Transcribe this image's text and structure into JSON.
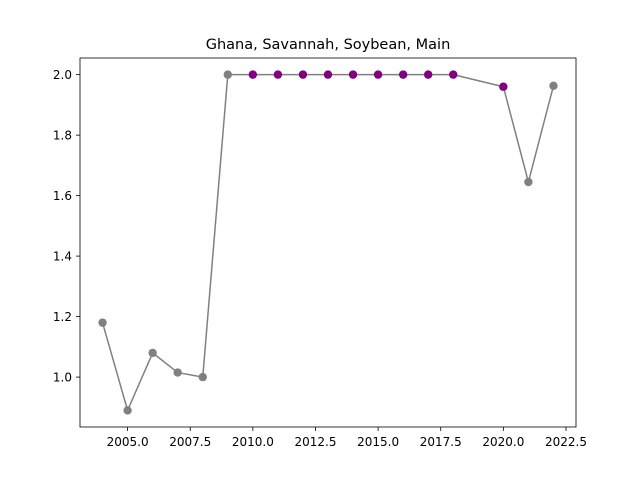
{
  "chart_data": {
    "type": "line",
    "title": "Ghana, Savannah, Soybean, Main",
    "xlabel": "",
    "ylabel": "",
    "xlim": [
      2003.1,
      2022.9
    ],
    "ylim": [
      0.835,
      2.055
    ],
    "x_ticks": [
      2005.0,
      2007.5,
      2010.0,
      2012.5,
      2015.0,
      2017.5,
      2020.0,
      2022.5
    ],
    "x_tick_labels": [
      "2005.0",
      "2007.5",
      "2010.0",
      "2012.5",
      "2015.0",
      "2017.5",
      "2020.0",
      "2022.5"
    ],
    "y_ticks": [
      1.0,
      1.2,
      1.4,
      1.6,
      1.8,
      2.0
    ],
    "y_tick_labels": [
      "1.0",
      "1.2",
      "1.4",
      "1.6",
      "1.8",
      "2.0"
    ],
    "grid": false,
    "series": [
      {
        "x": [
          2004,
          2005,
          2006,
          2007,
          2008,
          2009,
          2010,
          2011,
          2012,
          2013,
          2014,
          2015,
          2016,
          2017,
          2018,
          2020,
          2021,
          2022
        ],
        "values": [
          1.18,
          0.89,
          1.08,
          1.015,
          1.0,
          2.0,
          2.0,
          2.0,
          2.0,
          2.0,
          2.0,
          2.0,
          2.0,
          2.0,
          2.0,
          1.96,
          1.645,
          1.963
        ],
        "highlight": [
          false,
          false,
          false,
          false,
          false,
          false,
          true,
          true,
          true,
          true,
          true,
          true,
          true,
          true,
          true,
          true,
          false,
          false
        ]
      }
    ],
    "colors": {
      "line": "#808080",
      "marker": "#808080",
      "highlight_marker": "#800080"
    }
  }
}
